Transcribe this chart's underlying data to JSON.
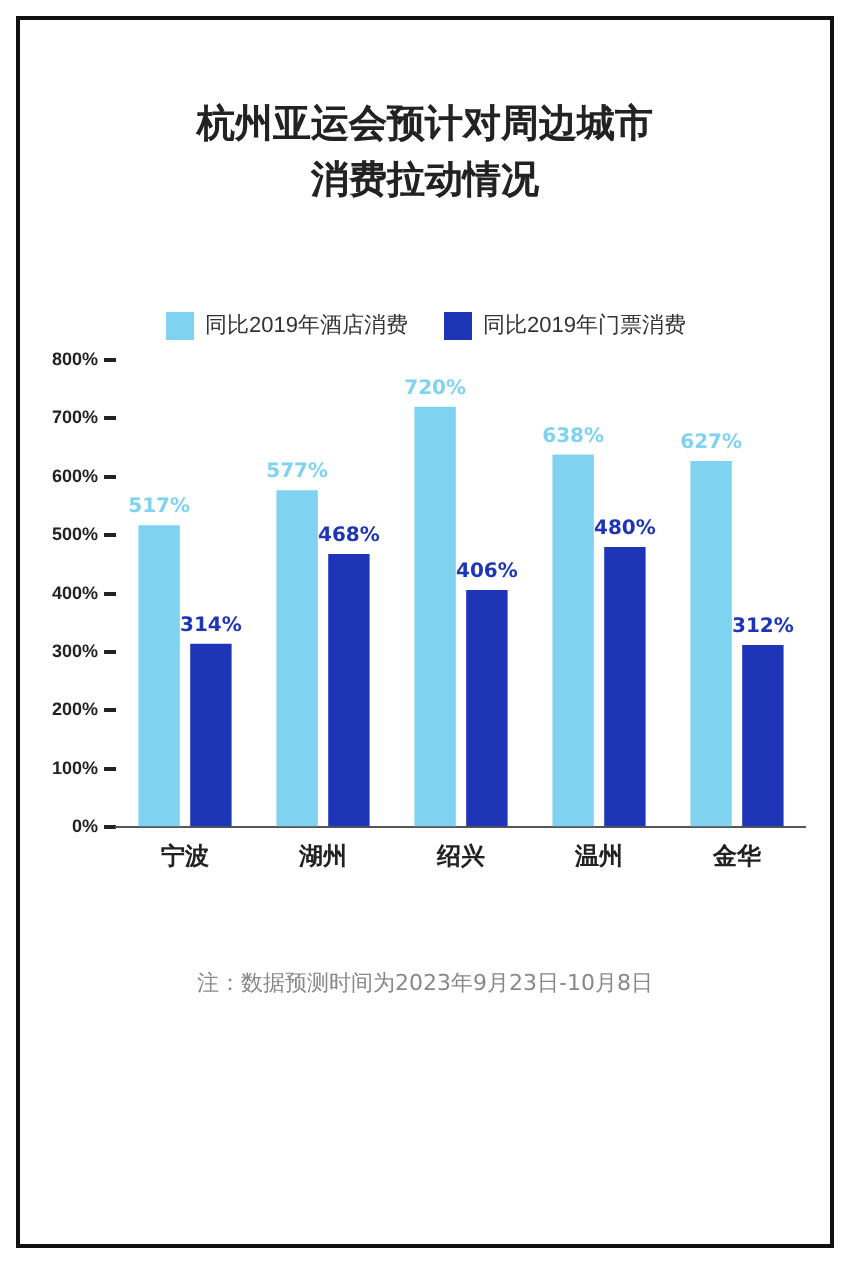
{
  "chart_data": {
    "type": "bar",
    "title": "杭州亚运会预计对周边城市消费拉动情况",
    "categories": [
      "宁波",
      "湖州",
      "绍兴",
      "温州",
      "金华"
    ],
    "series": [
      {
        "name": "同比2019年酒店消费",
        "color": "#7fd3f0",
        "values": [
          517,
          577,
          720,
          638,
          627
        ],
        "value_labels": [
          "517%",
          "577%",
          "720%",
          "638%",
          "627%"
        ]
      },
      {
        "name": "同比2019年门票消费",
        "color": "#1f35b8",
        "values": [
          314,
          468,
          406,
          480,
          312
        ],
        "value_labels": [
          "314%",
          "468%",
          "406%",
          "480%",
          "312%"
        ]
      }
    ],
    "ylim": [
      0,
      800
    ],
    "yticks": [
      {
        "value": 0,
        "label": "0%"
      },
      {
        "value": 100,
        "label": "100%"
      },
      {
        "value": 200,
        "label": "200%"
      },
      {
        "value": 300,
        "label": "300%"
      },
      {
        "value": 400,
        "label": "400%"
      },
      {
        "value": 500,
        "label": "500%"
      },
      {
        "value": 600,
        "label": "600%"
      },
      {
        "value": 700,
        "label": "700%"
      },
      {
        "value": 800,
        "label": "800%"
      }
    ],
    "grid": false,
    "legend": "top",
    "annotations": [
      "注：数据预测时间为2023年9月23日-10月8日"
    ]
  }
}
